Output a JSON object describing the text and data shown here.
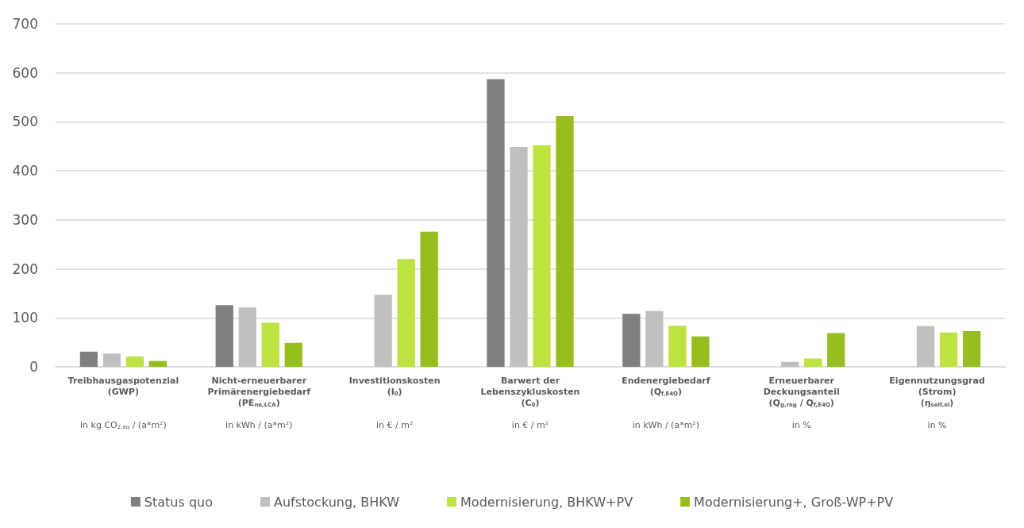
{
  "chart_data": {
    "type": "bar",
    "categories": [
      "Treibhausgaspotenzial\n(GWP)\n\n\nin kg CO$_{2,eq}$ / (a*m²)",
      "Nicht-erneuerbarer\nPrimärenergiebedarf\n(PE$_{ne,LCA}$)\n\nin kWh / (a*m²)",
      "Investitionskosten\n(I$_{0}$)\n\n\nin € / m²",
      "Barwert der\nLebenszykluskosten\n(C$_{0}$)\n\nin € / m²",
      "Endenergiebedarf\n(Q$_{f,E4Q}$)\n\n\nin kWh / (a*m²)",
      "Erneuerbarer\nDeckungsanteil\n(Q$_{g,reg}$ / Q$_{f,E4Q}$)\n\nin %",
      "Eigennutzungsgrad\n(Strom)\n(η$_{self,el}$)\n\nin %"
    ],
    "series": [
      {
        "name": "Status quo",
        "color": "#7f7f7f",
        "values": [
          31,
          126,
          null,
          587,
          108,
          null,
          null
        ]
      },
      {
        "name": "Aufstockung, BHKW",
        "color": "#bfbfbf",
        "values": [
          27,
          121,
          147,
          449,
          114,
          10,
          83
        ]
      },
      {
        "name": "Modernisierung, BHKW+PV",
        "color": "#bce33f",
        "values": [
          21,
          90,
          220,
          452,
          84,
          17,
          70
        ]
      },
      {
        "name": "Modernisierung+, Groß-WP+PV",
        "color": "#97be1f",
        "values": [
          12,
          49,
          276,
          512,
          62,
          69,
          73
        ]
      }
    ],
    "ylim": [
      0,
      700
    ],
    "yticks": [
      0,
      100,
      200,
      300,
      400,
      500,
      600,
      700
    ],
    "grid": "y",
    "legend": "bottom"
  }
}
